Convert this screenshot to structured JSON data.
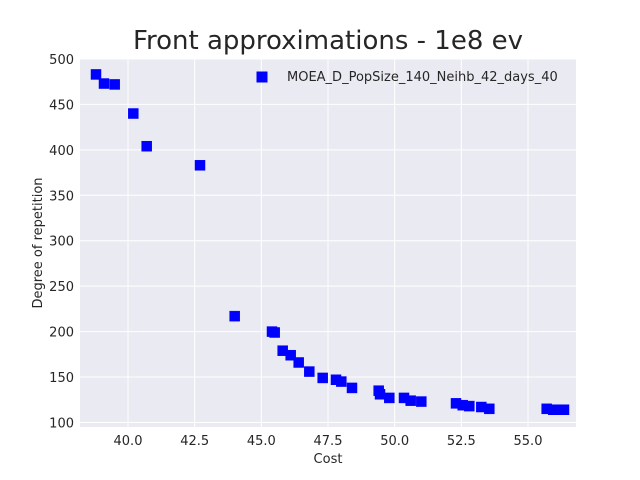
{
  "chart_data": {
    "type": "scatter",
    "title": "Front approximations - 1e8 ev",
    "xlabel": "Cost",
    "ylabel": "Degree of repetition",
    "xlim": [
      38.2,
      56.8
    ],
    "ylim": [
      95,
      500
    ],
    "xticks": [
      40.0,
      42.5,
      45.0,
      47.5,
      50.0,
      52.5,
      55.0
    ],
    "xtick_labels": [
      "40.0",
      "42.5",
      "45.0",
      "47.5",
      "50.0",
      "52.5",
      "55.0"
    ],
    "yticks": [
      100,
      150,
      200,
      250,
      300,
      350,
      400,
      450,
      500
    ],
    "ytick_labels": [
      "100",
      "150",
      "200",
      "250",
      "300",
      "350",
      "400",
      "450",
      "500"
    ],
    "grid": true,
    "legend_position": "top-right",
    "series": [
      {
        "name": "MOEA_D_PopSize_140_Neihb_42_days_40",
        "color": "#0000ff",
        "marker": "square",
        "points": [
          [
            38.8,
            483
          ],
          [
            39.1,
            473
          ],
          [
            39.5,
            472
          ],
          [
            40.2,
            440
          ],
          [
            40.7,
            404
          ],
          [
            42.7,
            383
          ],
          [
            44.0,
            217
          ],
          [
            45.4,
            200
          ],
          [
            45.5,
            199
          ],
          [
            45.8,
            179
          ],
          [
            46.1,
            174
          ],
          [
            46.4,
            166
          ],
          [
            46.8,
            156
          ],
          [
            47.3,
            149
          ],
          [
            47.8,
            147
          ],
          [
            48.0,
            145
          ],
          [
            48.4,
            138
          ],
          [
            49.4,
            135
          ],
          [
            49.45,
            131
          ],
          [
            49.8,
            127
          ],
          [
            50.35,
            127
          ],
          [
            50.6,
            124
          ],
          [
            51.0,
            123
          ],
          [
            52.3,
            121
          ],
          [
            52.55,
            119
          ],
          [
            52.8,
            118
          ],
          [
            53.25,
            117
          ],
          [
            53.55,
            115
          ],
          [
            55.7,
            115
          ],
          [
            55.95,
            114
          ],
          [
            56.1,
            114
          ],
          [
            56.35,
            114
          ]
        ]
      }
    ]
  }
}
